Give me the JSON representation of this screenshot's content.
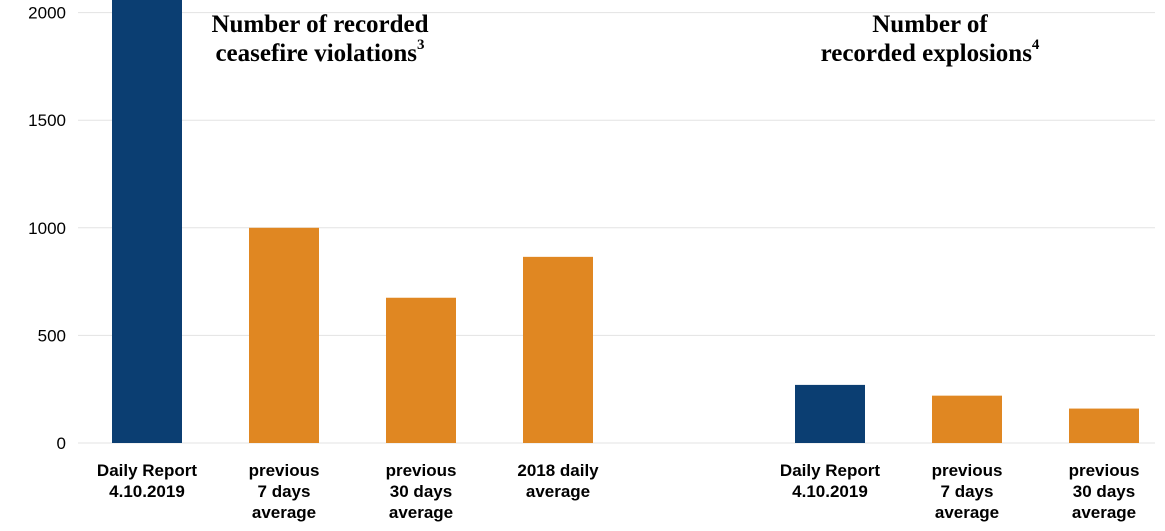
{
  "chart_data": [
    {
      "type": "bar",
      "title": "Number of recorded ceasefire violations",
      "title_line1": "Number of recorded",
      "title_line2": "ceasefire violations",
      "title_footnote": "3",
      "categories": [
        [
          "Daily Report",
          "4.10.2019"
        ],
        [
          "previous",
          "7 days",
          "average"
        ],
        [
          "previous",
          "30 days",
          "average"
        ],
        [
          "2018 daily",
          "average"
        ]
      ],
      "values": [
        2100,
        1000,
        675,
        865
      ],
      "colors": [
        "#0b3e72",
        "#e08722",
        "#e08722",
        "#e08722"
      ],
      "ylim": [
        0,
        2500
      ],
      "yticks": [
        0,
        500,
        1000,
        1500,
        2000,
        2500
      ],
      "grid": true
    },
    {
      "type": "bar",
      "title": "Number of recorded explosions",
      "title_line1": "Number of",
      "title_line2": "recorded explosions",
      "title_footnote": "4",
      "categories": [
        [
          "Daily Report",
          "4.10.2019"
        ],
        [
          "previous",
          "7 days",
          "average"
        ],
        [
          "previous",
          "30 days",
          "average"
        ]
      ],
      "values": [
        270,
        220,
        160
      ],
      "colors": [
        "#0b3e72",
        "#e08722",
        "#e08722"
      ],
      "ylim": [
        0,
        2500
      ],
      "grid": true
    }
  ]
}
